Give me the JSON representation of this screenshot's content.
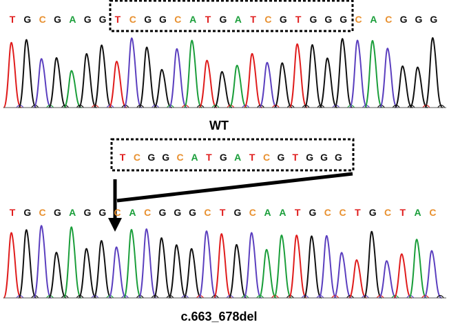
{
  "colors": {
    "T": "#e01c1c",
    "C": "#5b3fbf",
    "G": "#111111",
    "A": "#1a9e3a",
    "C_text": "#e8902f"
  },
  "wt": {
    "label": "WT",
    "sequence": [
      "T",
      "G",
      "C",
      "G",
      "A",
      "G",
      "G",
      "T",
      "C",
      "G",
      "G",
      "C",
      "A",
      "T",
      "G",
      "A",
      "T",
      "C",
      "G",
      "T",
      "G",
      "G",
      "G",
      "C",
      "A",
      "C",
      "G",
      "G",
      "G"
    ],
    "boxed_sequence": [
      "T",
      "C",
      "G",
      "G",
      "C",
      "A",
      "T",
      "G",
      "A",
      "T",
      "C",
      "G",
      "T",
      "G",
      "G",
      "G"
    ]
  },
  "deleted": {
    "sequence": [
      "T",
      "C",
      "G",
      "G",
      "C",
      "A",
      "T",
      "G",
      "A",
      "T",
      "C",
      "G",
      "T",
      "G",
      "G",
      "G"
    ]
  },
  "mutant": {
    "label": "c.663_678del",
    "sequence": [
      "T",
      "G",
      "C",
      "G",
      "A",
      "G",
      "G",
      "C",
      "A",
      "C",
      "G",
      "G",
      "G",
      "C",
      "T",
      "G",
      "C",
      "A",
      "A",
      "T",
      "G",
      "C",
      "C",
      "T",
      "G",
      "C",
      "T",
      "A",
      "C"
    ]
  }
}
